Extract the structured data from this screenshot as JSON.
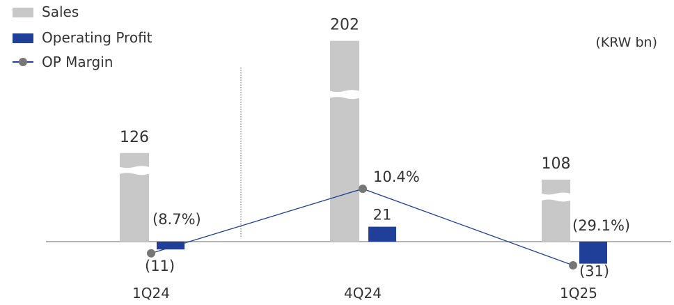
{
  "unit_label": "(KRW bn)",
  "legend": [
    {
      "label": "Sales",
      "kind": "box",
      "color": "#c8c8c8"
    },
    {
      "label": "Operating Profit",
      "kind": "box",
      "color": "#1f3f99"
    },
    {
      "label": "OP Margin",
      "kind": "line",
      "color": "#1f3f99",
      "marker_color": "#777777"
    }
  ],
  "chart_data": {
    "type": "bar",
    "categories": [
      "1Q24",
      "4Q24",
      "1Q25"
    ],
    "series": [
      {
        "name": "Sales",
        "values": [
          126,
          202,
          108
        ],
        "labels": [
          "126",
          "202",
          "108"
        ],
        "color": "#c8c8c8",
        "axis_break": true
      },
      {
        "name": "Operating Profit",
        "values": [
          -11,
          21,
          -31
        ],
        "labels": [
          "(11)",
          "21",
          "(31)"
        ],
        "color": "#1f3f99"
      },
      {
        "name": "OP Margin",
        "type": "line",
        "values": [
          -8.7,
          10.4,
          -29.1
        ],
        "labels": [
          "(8.7%)",
          "10.4%",
          "(29.1%)"
        ],
        "unit": "%",
        "color": "#1f3f99",
        "marker_color": "#777777"
      }
    ],
    "ylabel": "(KRW bn)",
    "grid": false,
    "legend_position": "top-left",
    "divider_after_category": 0
  }
}
